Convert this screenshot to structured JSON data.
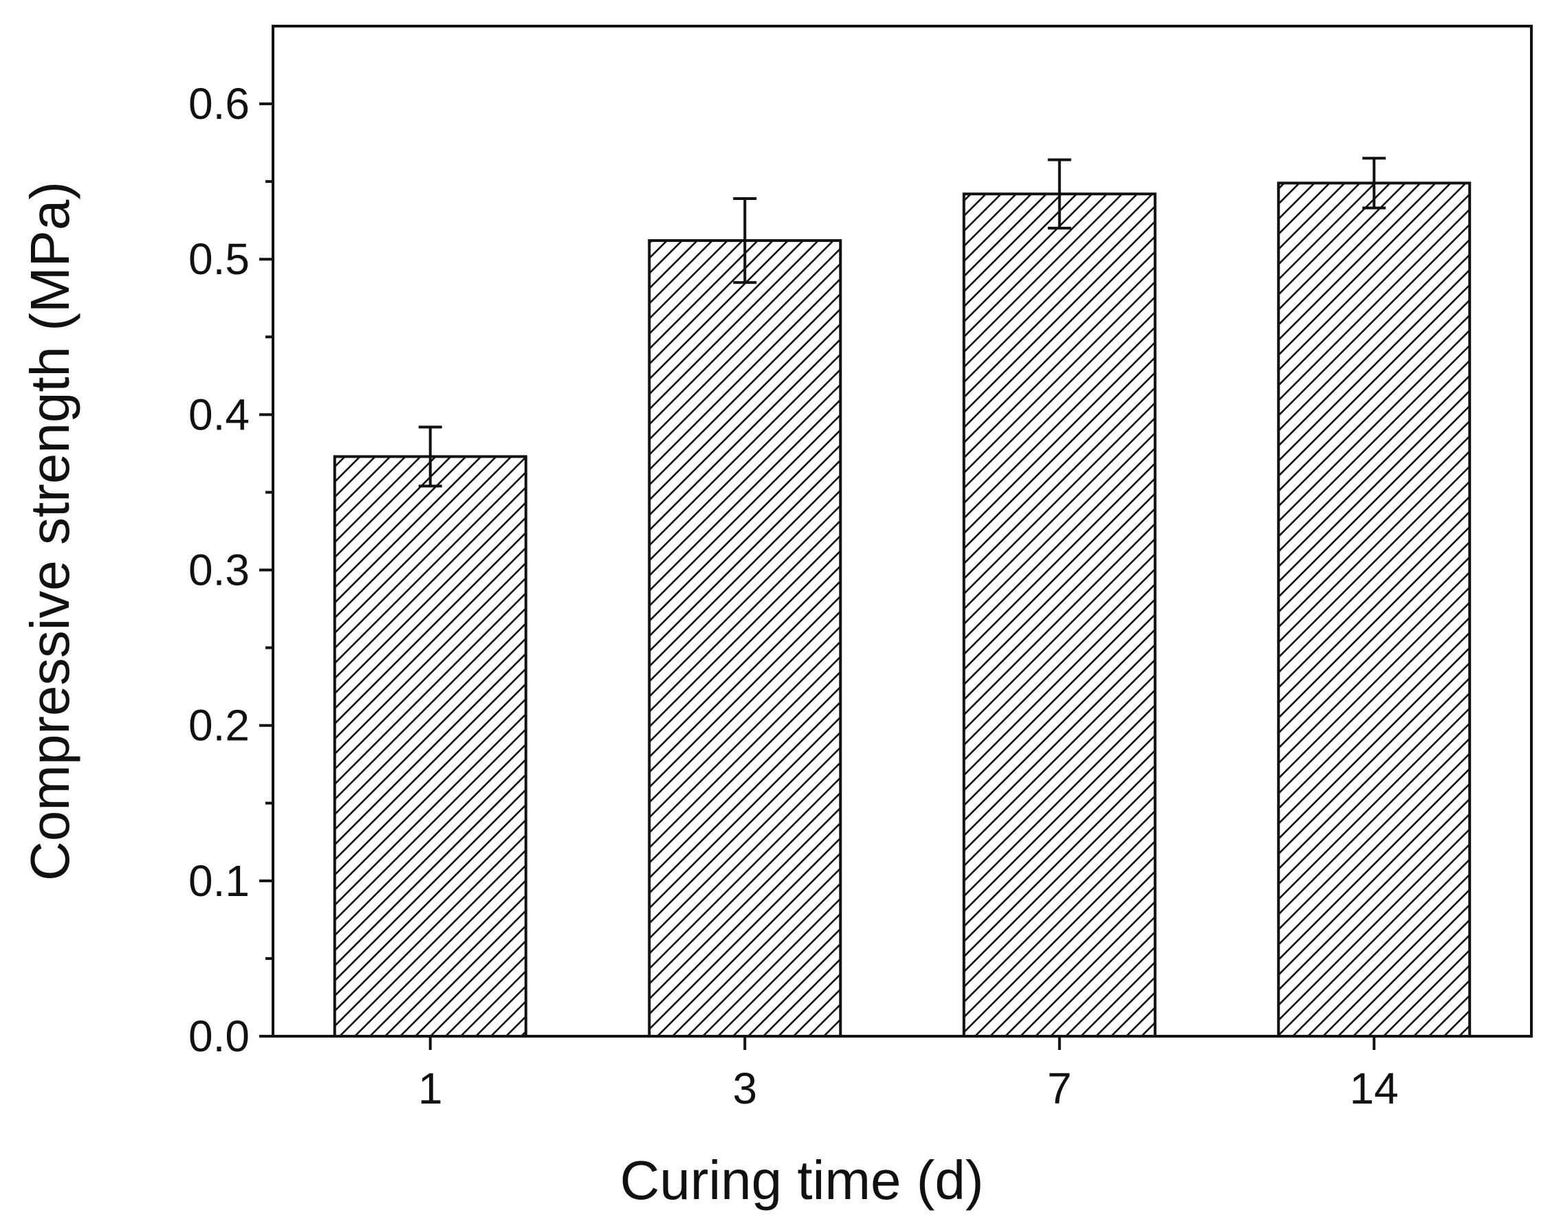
{
  "chart_data": {
    "type": "bar",
    "title": "",
    "xlabel": "Curing time (d)",
    "ylabel": "Compressive strength (MPa)",
    "categories": [
      "1",
      "3",
      "7",
      "14"
    ],
    "values": [
      0.373,
      0.512,
      0.542,
      0.549
    ],
    "errors": [
      0.019,
      0.027,
      0.022,
      0.016
    ],
    "ylim": [
      0,
      0.65
    ],
    "yticks": [
      "0.0",
      "0.1",
      "0.2",
      "0.3",
      "0.4",
      "0.5",
      "0.6"
    ],
    "yminor_step": 0.05,
    "grid": false,
    "legend": "none",
    "bar_fill": "hatched diagonal",
    "colors": {
      "bar_edge": "#111111",
      "hatch": "#111111",
      "background": "#ffffff",
      "axis": "#111111"
    }
  }
}
